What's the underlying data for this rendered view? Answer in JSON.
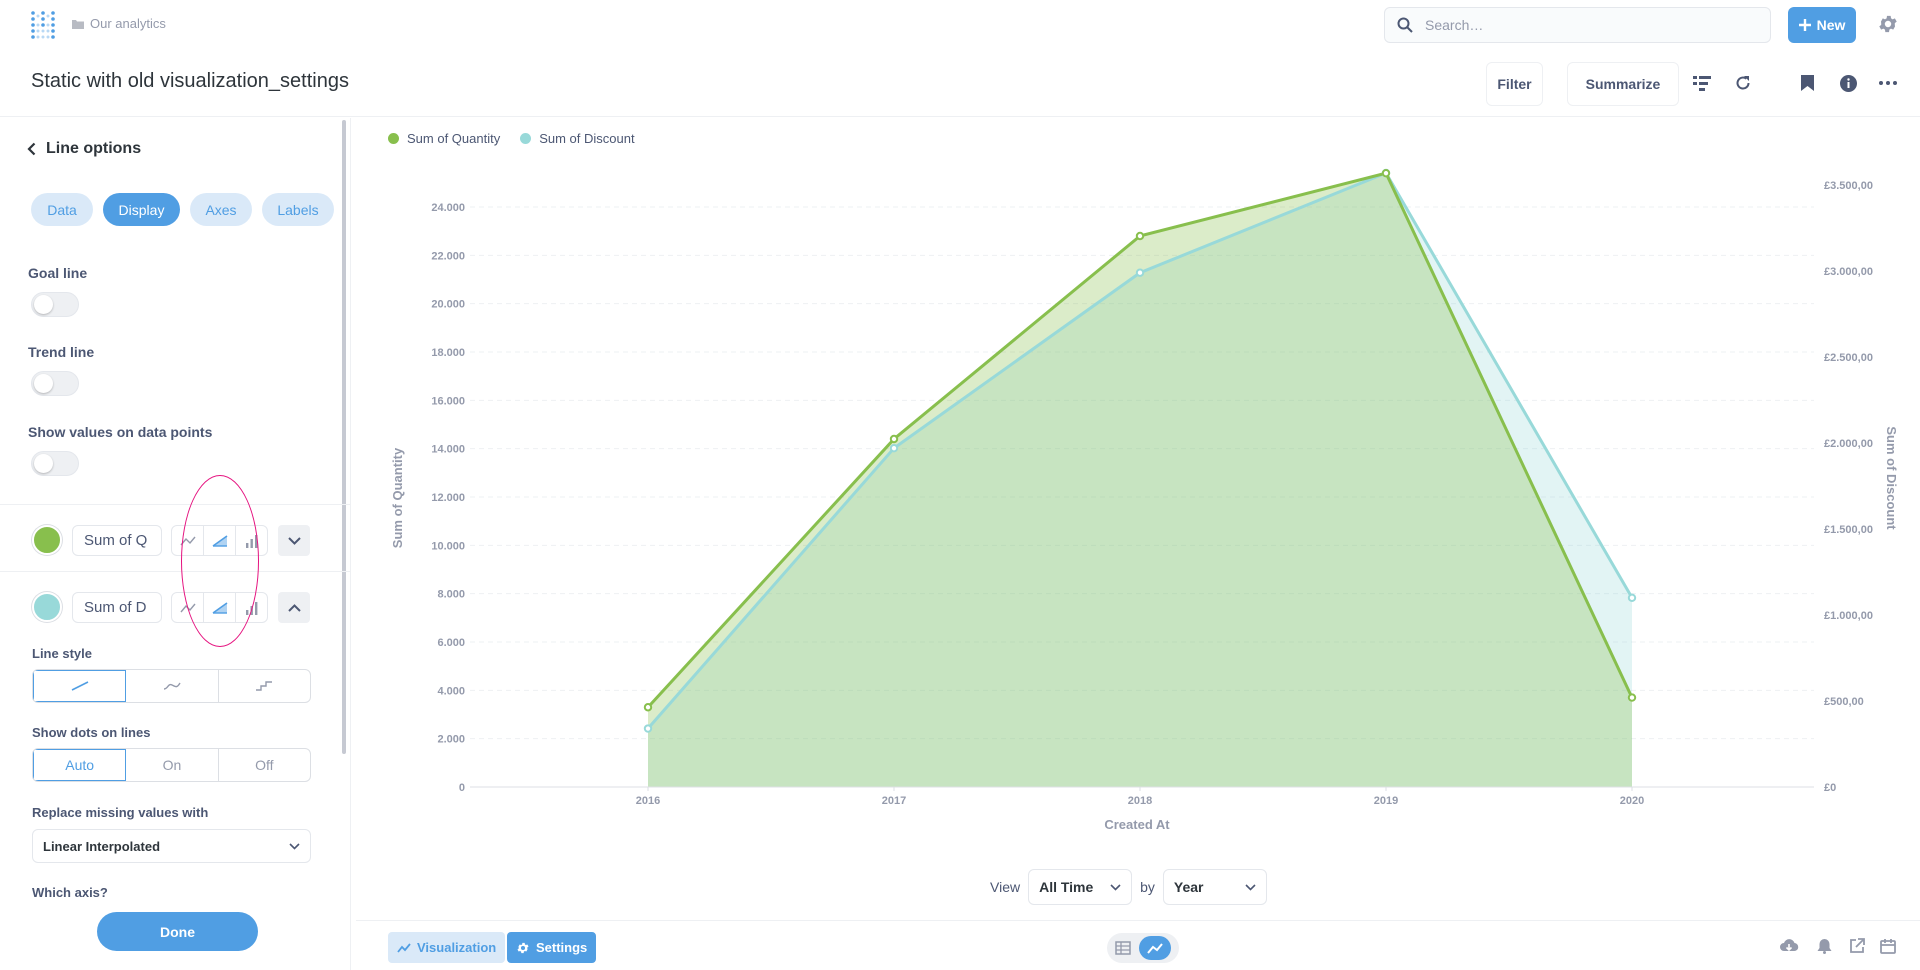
{
  "topbar": {
    "breadcrumb": "Our analytics",
    "search_placeholder": "Search…",
    "new_label": "New"
  },
  "header": {
    "title": "Static with old visualization_settings",
    "filter_label": "Filter",
    "summarize_label": "Summarize"
  },
  "sidebar": {
    "back_label": "Line options",
    "tabs": [
      {
        "label": "Data",
        "active": false
      },
      {
        "label": "Display",
        "active": true
      },
      {
        "label": "Axes",
        "active": false
      },
      {
        "label": "Labels",
        "active": false
      }
    ],
    "goal_line_label": "Goal line",
    "trend_line_label": "Trend line",
    "show_values_label": "Show values on data points",
    "series": [
      {
        "name": "Sum of Q",
        "color": "#88bf4d",
        "expanded": false
      },
      {
        "name": "Sum of D",
        "color": "#98d9d9",
        "expanded": true
      }
    ],
    "line_style_label": "Line style",
    "show_dots_label": "Show dots on lines",
    "dots_options": [
      "Auto",
      "On",
      "Off"
    ],
    "dots_selected": "Auto",
    "missing_values_label": "Replace missing values with",
    "missing_values_value": "Linear Interpolated",
    "which_axis_label": "Which axis?",
    "done_label": "Done"
  },
  "chart_data": {
    "type": "area",
    "x": [
      "2016",
      "2017",
      "2018",
      "2019",
      "2020"
    ],
    "series": [
      {
        "name": "Sum of Quantity",
        "axis": "left",
        "color": "#88bf4d",
        "values": [
          3300,
          14400,
          22800,
          25400,
          3700
        ]
      },
      {
        "name": "Sum of Discount",
        "axis": "right",
        "color": "#98d9d9",
        "values": [
          340,
          1970,
          2990,
          3570,
          1100
        ]
      }
    ],
    "xlabel": "Created At",
    "ylabel": "Sum of Quantity",
    "y2label": "Sum of Discount",
    "ylim": [
      0,
      25000
    ],
    "y2lim": [
      0,
      3600
    ],
    "yticks": [
      "0",
      "2.000",
      "4.000",
      "6.000",
      "8.000",
      "10.000",
      "12.000",
      "14.000",
      "16.000",
      "18.000",
      "20.000",
      "22.000",
      "24.000"
    ],
    "ytick_values": [
      0,
      2000,
      4000,
      6000,
      8000,
      10000,
      12000,
      14000,
      16000,
      18000,
      20000,
      22000,
      24000
    ],
    "y2ticks": [
      "£0",
      "£500,00",
      "£1.000,00",
      "£1.500,00",
      "£2.000,00",
      "£2.500,00",
      "£3.000,00",
      "£3.500,00"
    ],
    "y2tick_values": [
      0,
      500,
      1000,
      1500,
      2000,
      2500,
      3000,
      3500
    ],
    "legend": "top-left",
    "grid": true
  },
  "viewbar": {
    "view_label": "View",
    "view_value": "All Time",
    "by_label": "by",
    "by_value": "Year"
  },
  "footer": {
    "visualization_label": "Visualization",
    "settings_label": "Settings"
  }
}
